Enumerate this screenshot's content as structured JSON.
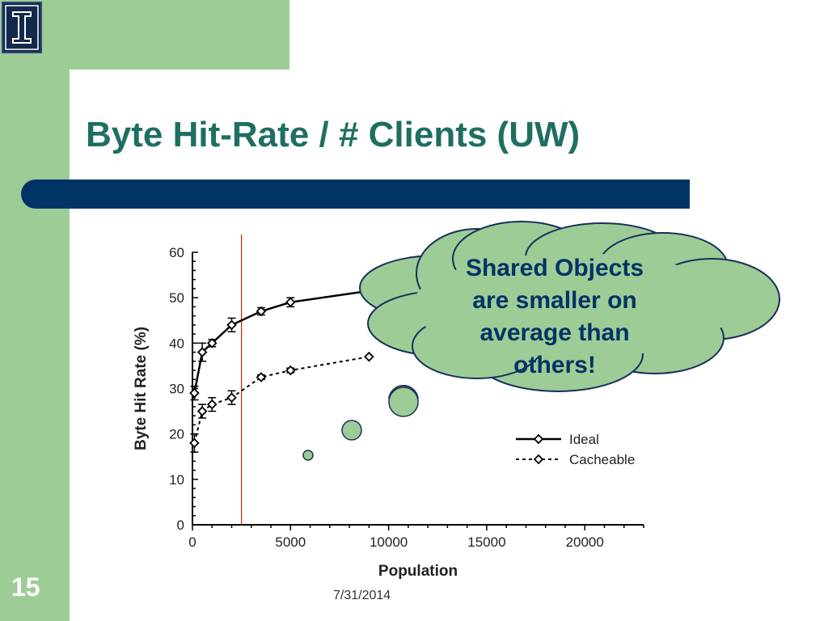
{
  "slide": {
    "title": "Byte Hit-Rate / # Clients (UW)",
    "number": "15",
    "date": "7/31/2014",
    "colors": {
      "green": "#9dcc96",
      "navy": "#003366",
      "title": "#1f6e62",
      "marker": "#cc2200"
    },
    "logo_icon": "block-i-logo-icon"
  },
  "callout": {
    "lines": [
      "Shared Objects",
      "are smaller on",
      "average than",
      "others!"
    ]
  },
  "chart_data": {
    "type": "line",
    "xlabel": "Population",
    "ylabel": "Byte Hit Rate (%)",
    "xlim": [
      0,
      23000
    ],
    "ylim": [
      0,
      60
    ],
    "xticks": [
      "0",
      "5000",
      "10000",
      "15000",
      "20000"
    ],
    "yticks": [
      "0",
      "10",
      "20",
      "30",
      "40",
      "50",
      "60"
    ],
    "vertical_marker_x": 2500,
    "legend_position": "bottom-right",
    "series": [
      {
        "name": "Ideal",
        "style": "solid",
        "x": [
          100,
          500,
          1000,
          2000,
          3500,
          5000,
          9000
        ],
        "y": [
          29,
          38,
          40,
          44,
          47,
          49,
          51.5
        ],
        "err": [
          1.5,
          2,
          0.8,
          1.5,
          0.8,
          1,
          0
        ]
      },
      {
        "name": "Cacheable",
        "style": "dashed",
        "x": [
          100,
          500,
          1000,
          2000,
          3500,
          5000,
          9000
        ],
        "y": [
          18,
          25,
          26.5,
          28,
          32.5,
          34,
          37
        ],
        "err": [
          2,
          1.5,
          1.5,
          1.5,
          0.5,
          0.5,
          0
        ]
      }
    ]
  }
}
